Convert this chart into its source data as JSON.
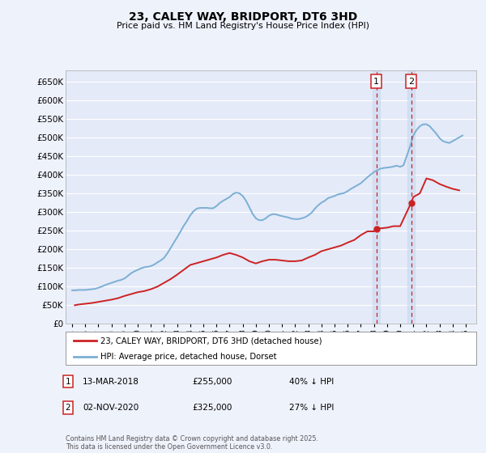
{
  "title": "23, CALEY WAY, BRIDPORT, DT6 3HD",
  "subtitle": "Price paid vs. HM Land Registry's House Price Index (HPI)",
  "ylabel_ticks": [
    "£0",
    "£50K",
    "£100K",
    "£150K",
    "£200K",
    "£250K",
    "£300K",
    "£350K",
    "£400K",
    "£450K",
    "£500K",
    "£550K",
    "£600K",
    "£650K"
  ],
  "ytick_values": [
    0,
    50000,
    100000,
    150000,
    200000,
    250000,
    300000,
    350000,
    400000,
    450000,
    500000,
    550000,
    600000,
    650000
  ],
  "ylim": [
    0,
    680000
  ],
  "xlim_start": 1994.5,
  "xlim_end": 2025.8,
  "background_color": "#eef2fb",
  "plot_bg_color": "#e4eaf8",
  "grid_color": "#ffffff",
  "hpi_color": "#7bafd4",
  "price_color": "#cc2222",
  "marker1_x": 2018.19,
  "marker1_y": 255000,
  "marker2_x": 2020.84,
  "marker2_y": 325000,
  "vline1_x": 2018.19,
  "vline2_x": 2020.84,
  "legend_price_label": "23, CALEY WAY, BRIDPORT, DT6 3HD (detached house)",
  "legend_hpi_label": "HPI: Average price, detached house, Dorset",
  "annotation1_date": "13-MAR-2018",
  "annotation1_price": "£255,000",
  "annotation1_hpi": "40% ↓ HPI",
  "annotation2_date": "02-NOV-2020",
  "annotation2_price": "£325,000",
  "annotation2_hpi": "27% ↓ HPI",
  "footer": "Contains HM Land Registry data © Crown copyright and database right 2025.\nThis data is licensed under the Open Government Licence v3.0.",
  "hpi_data_x": [
    1995,
    1995.25,
    1995.5,
    1995.75,
    1996,
    1996.25,
    1996.5,
    1996.75,
    1997,
    1997.25,
    1997.5,
    1997.75,
    1998,
    1998.25,
    1998.5,
    1998.75,
    1999,
    1999.25,
    1999.5,
    1999.75,
    2000,
    2000.25,
    2000.5,
    2000.75,
    2001,
    2001.25,
    2001.5,
    2001.75,
    2002,
    2002.25,
    2002.5,
    2002.75,
    2003,
    2003.25,
    2003.5,
    2003.75,
    2004,
    2004.25,
    2004.5,
    2004.75,
    2005,
    2005.25,
    2005.5,
    2005.75,
    2006,
    2006.25,
    2006.5,
    2006.75,
    2007,
    2007.25,
    2007.5,
    2007.75,
    2008,
    2008.25,
    2008.5,
    2008.75,
    2009,
    2009.25,
    2009.5,
    2009.75,
    2010,
    2010.25,
    2010.5,
    2010.75,
    2011,
    2011.25,
    2011.5,
    2011.75,
    2012,
    2012.25,
    2012.5,
    2012.75,
    2013,
    2013.25,
    2013.5,
    2013.75,
    2014,
    2014.25,
    2014.5,
    2014.75,
    2015,
    2015.25,
    2015.5,
    2015.75,
    2016,
    2016.25,
    2016.5,
    2016.75,
    2017,
    2017.25,
    2017.5,
    2017.75,
    2018,
    2018.25,
    2018.5,
    2018.75,
    2019,
    2019.25,
    2019.5,
    2019.75,
    2020,
    2020.25,
    2020.5,
    2020.75,
    2021,
    2021.25,
    2021.5,
    2021.75,
    2022,
    2022.25,
    2022.5,
    2022.75,
    2023,
    2023.25,
    2023.5,
    2023.75,
    2024,
    2024.25,
    2024.5,
    2024.75
  ],
  "hpi_data_y": [
    90000,
    90000,
    91000,
    91000,
    91000,
    92000,
    93000,
    94000,
    97000,
    100000,
    104000,
    107000,
    110000,
    113000,
    116000,
    118000,
    122000,
    129000,
    136000,
    141000,
    145000,
    149000,
    152000,
    153000,
    155000,
    159000,
    165000,
    170000,
    177000,
    189000,
    203000,
    218000,
    232000,
    247000,
    263000,
    276000,
    291000,
    302000,
    309000,
    311000,
    311000,
    311000,
    310000,
    310000,
    316000,
    324000,
    330000,
    335000,
    340000,
    348000,
    352000,
    350000,
    343000,
    330000,
    313000,
    295000,
    283000,
    278000,
    278000,
    283000,
    290000,
    294000,
    294000,
    291000,
    289000,
    287000,
    285000,
    282000,
    281000,
    281000,
    283000,
    286000,
    291000,
    298000,
    309000,
    318000,
    325000,
    330000,
    337000,
    340000,
    343000,
    347000,
    349000,
    351000,
    356000,
    362000,
    367000,
    372000,
    377000,
    385000,
    393000,
    400000,
    407000,
    412000,
    416000,
    418000,
    419000,
    420000,
    422000,
    424000,
    421000,
    425000,
    450000,
    475000,
    505000,
    520000,
    530000,
    535000,
    535000,
    530000,
    520000,
    510000,
    498000,
    490000,
    487000,
    485000,
    490000,
    495000,
    500000,
    505000
  ],
  "price_data_x": [
    1995.2,
    1995.5,
    1996,
    1996.5,
    1997,
    1997.5,
    1998,
    1998.5,
    1999,
    1999.5,
    2000,
    2000.5,
    2001,
    2001.5,
    2002,
    2002.5,
    2003,
    2003.5,
    2004,
    2004.5,
    2005,
    2005.5,
    2006,
    2006.5,
    2007,
    2007.5,
    2008,
    2008.5,
    2009,
    2009.5,
    2010,
    2010.5,
    2011,
    2011.5,
    2012,
    2012.5,
    2013,
    2013.5,
    2014,
    2014.5,
    2015,
    2015.5,
    2016,
    2016.5,
    2017,
    2017.5,
    2018,
    2018.19,
    2019,
    2019.5,
    2020,
    2020.84,
    2021,
    2021.5,
    2022,
    2022.5,
    2023,
    2023.5,
    2024,
    2024.5
  ],
  "price_data_y": [
    50000,
    52000,
    54000,
    56000,
    59000,
    62000,
    65000,
    69000,
    75000,
    80000,
    85000,
    88000,
    93000,
    100000,
    110000,
    120000,
    132000,
    145000,
    158000,
    163000,
    168000,
    173000,
    178000,
    185000,
    190000,
    185000,
    178000,
    168000,
    162000,
    168000,
    172000,
    172000,
    170000,
    168000,
    168000,
    170000,
    178000,
    185000,
    195000,
    200000,
    205000,
    210000,
    218000,
    225000,
    238000,
    248000,
    248000,
    255000,
    258000,
    262000,
    262000,
    325000,
    340000,
    350000,
    390000,
    385000,
    375000,
    368000,
    362000,
    358000
  ]
}
